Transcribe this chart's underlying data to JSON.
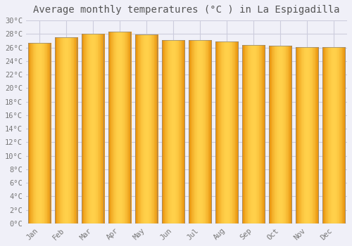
{
  "title": "Average monthly temperatures (°C ) in La Espigadilla",
  "months": [
    "Jan",
    "Feb",
    "Mar",
    "Apr",
    "May",
    "Jun",
    "Jul",
    "Aug",
    "Sep",
    "Oct",
    "Nov",
    "Dec"
  ],
  "temperatures": [
    26.7,
    27.5,
    28.0,
    28.3,
    27.9,
    27.1,
    27.1,
    26.9,
    26.4,
    26.3,
    26.1,
    26.1
  ],
  "bar_color_light": "#FFD04A",
  "bar_color_dark": "#E8900A",
  "bar_edge_color": "#888888",
  "ylim": [
    0,
    30
  ],
  "ytick_step": 2,
  "background_color": "#f0f0f8",
  "plot_bg_color": "#f0f0f8",
  "grid_color": "#ccccdd",
  "title_fontsize": 10,
  "tick_fontsize": 7.5,
  "font_family": "monospace"
}
